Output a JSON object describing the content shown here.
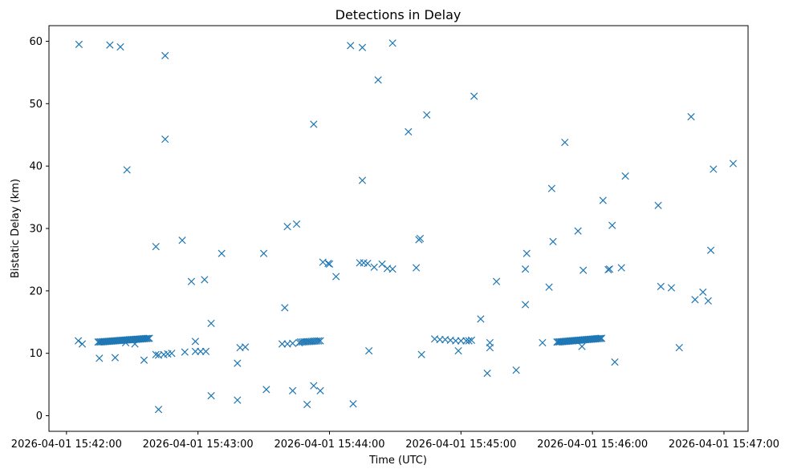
{
  "chart_data": {
    "type": "scatter",
    "title": "Detections in Delay",
    "xlabel": "Time (UTC)",
    "ylabel": "Bistatic Delay (km)",
    "xlim": [
      -0.1333,
      5.1833
    ],
    "ylim": [
      -2.5,
      62.5
    ],
    "x_unit": "minutes after 2026-04-01 15:42:00",
    "xticks": [
      {
        "value": 0,
        "label": "2026-04-01 15:42:00"
      },
      {
        "value": 1,
        "label": "2026-04-01 15:43:00"
      },
      {
        "value": 2,
        "label": "2026-04-01 15:44:00"
      },
      {
        "value": 3,
        "label": "2026-04-01 15:45:00"
      },
      {
        "value": 4,
        "label": "2026-04-01 15:46:00"
      },
      {
        "value": 5,
        "label": "2026-04-01 15:47:00"
      }
    ],
    "yticks": [
      0,
      10,
      20,
      30,
      40,
      50,
      60
    ],
    "grid": false,
    "marker": "x",
    "color": "#1f77b4",
    "series": [
      {
        "name": "detections",
        "points": [
          [
            0.095,
            59.5
          ],
          [
            0.33,
            59.4
          ],
          [
            0.41,
            59.1
          ],
          [
            0.75,
            57.7
          ],
          [
            0.75,
            44.3
          ],
          [
            0.46,
            39.4
          ],
          [
            0.68,
            27.1
          ],
          [
            0.88,
            28.1
          ],
          [
            0.95,
            21.5
          ],
          [
            1.05,
            21.8
          ],
          [
            1.18,
            26.0
          ],
          [
            1.5,
            26.0
          ],
          [
            1.66,
            17.3
          ],
          [
            1.68,
            30.3
          ],
          [
            1.75,
            30.7
          ],
          [
            1.88,
            46.7
          ],
          [
            1.99,
            24.4
          ],
          [
            2.05,
            22.3
          ],
          [
            2.16,
            59.3
          ],
          [
            2.25,
            59.0
          ],
          [
            2.37,
            53.8
          ],
          [
            2.48,
            59.7
          ],
          [
            2.25,
            37.7
          ],
          [
            2.6,
            45.5
          ],
          [
            2.68,
            28.2
          ],
          [
            2.74,
            48.2
          ],
          [
            2.66,
            23.7
          ],
          [
            2.69,
            28.4
          ],
          [
            3.1,
            51.2
          ],
          [
            3.15,
            15.5
          ],
          [
            3.27,
            21.5
          ],
          [
            3.49,
            17.8
          ],
          [
            3.49,
            23.5
          ],
          [
            3.5,
            26.0
          ],
          [
            3.67,
            20.6
          ],
          [
            3.69,
            36.4
          ],
          [
            3.7,
            27.9
          ],
          [
            3.79,
            43.8
          ],
          [
            3.89,
            29.6
          ],
          [
            3.93,
            23.3
          ],
          [
            4.08,
            34.5
          ],
          [
            4.12,
            23.4
          ],
          [
            4.13,
            23.5
          ],
          [
            4.15,
            30.5
          ],
          [
            4.22,
            23.7
          ],
          [
            4.25,
            38.4
          ],
          [
            4.5,
            33.7
          ],
          [
            4.52,
            20.7
          ],
          [
            4.6,
            20.5
          ],
          [
            4.66,
            10.9
          ],
          [
            4.75,
            47.9
          ],
          [
            4.78,
            18.6
          ],
          [
            4.84,
            19.8
          ],
          [
            4.88,
            18.4
          ],
          [
            4.9,
            26.5
          ],
          [
            4.92,
            39.5
          ],
          [
            5.07,
            40.4
          ],
          [
            0.09,
            12.0
          ],
          [
            0.12,
            11.5
          ],
          [
            0.25,
            9.2
          ],
          [
            0.37,
            9.3
          ],
          [
            0.45,
            11.7
          ],
          [
            0.52,
            11.5
          ],
          [
            0.59,
            8.9
          ],
          [
            0.68,
            9.8
          ],
          [
            0.7,
            9.7
          ],
          [
            0.74,
            9.8
          ],
          [
            0.77,
            9.9
          ],
          [
            0.8,
            10.0
          ],
          [
            0.9,
            10.2
          ],
          [
            0.98,
            10.3
          ],
          [
            0.98,
            11.9
          ],
          [
            1.02,
            10.3
          ],
          [
            1.06,
            10.3
          ],
          [
            0.7,
            1.0
          ],
          [
            1.1,
            3.2
          ],
          [
            1.1,
            14.8
          ],
          [
            1.3,
            8.4
          ],
          [
            1.3,
            2.5
          ],
          [
            1.32,
            10.9
          ],
          [
            1.36,
            11.0
          ],
          [
            1.52,
            4.2
          ],
          [
            1.64,
            11.5
          ],
          [
            1.72,
            4.0
          ],
          [
            1.68,
            11.5
          ],
          [
            1.72,
            11.6
          ],
          [
            1.77,
            11.7
          ],
          [
            1.83,
            1.8
          ],
          [
            1.88,
            4.8
          ],
          [
            1.93,
            4.0
          ],
          [
            1.95,
            24.6
          ],
          [
            2.0,
            24.3
          ],
          [
            2.18,
            1.9
          ],
          [
            2.23,
            24.5
          ],
          [
            2.26,
            24.5
          ],
          [
            2.29,
            24.4
          ],
          [
            2.3,
            10.4
          ],
          [
            2.34,
            23.8
          ],
          [
            2.4,
            24.3
          ],
          [
            2.44,
            23.6
          ],
          [
            2.48,
            23.5
          ],
          [
            2.7,
            9.8
          ],
          [
            2.8,
            12.3
          ],
          [
            2.84,
            12.2
          ],
          [
            2.88,
            12.2
          ],
          [
            2.92,
            12.1
          ],
          [
            2.96,
            12.0
          ],
          [
            3.0,
            12.0
          ],
          [
            3.04,
            12.0
          ],
          [
            3.08,
            12.1
          ],
          [
            2.98,
            10.4
          ],
          [
            3.06,
            12.0
          ],
          [
            3.2,
            6.8
          ],
          [
            3.22,
            11.7
          ],
          [
            3.22,
            10.9
          ],
          [
            3.42,
            7.3
          ],
          [
            3.62,
            11.7
          ],
          [
            3.85,
            12.0
          ],
          [
            3.92,
            11.1
          ],
          [
            4.17,
            8.6
          ]
        ],
        "clusters": [
          {
            "x_start": 0.24,
            "x_end": 0.63,
            "y_start": 11.8,
            "y_end": 12.4,
            "count": 40
          },
          {
            "x_start": 1.78,
            "x_end": 1.93,
            "y_start": 11.8,
            "y_end": 12.0,
            "count": 12
          },
          {
            "x_start": 3.73,
            "x_end": 4.07,
            "y_start": 11.8,
            "y_end": 12.4,
            "count": 35
          }
        ]
      }
    ]
  }
}
